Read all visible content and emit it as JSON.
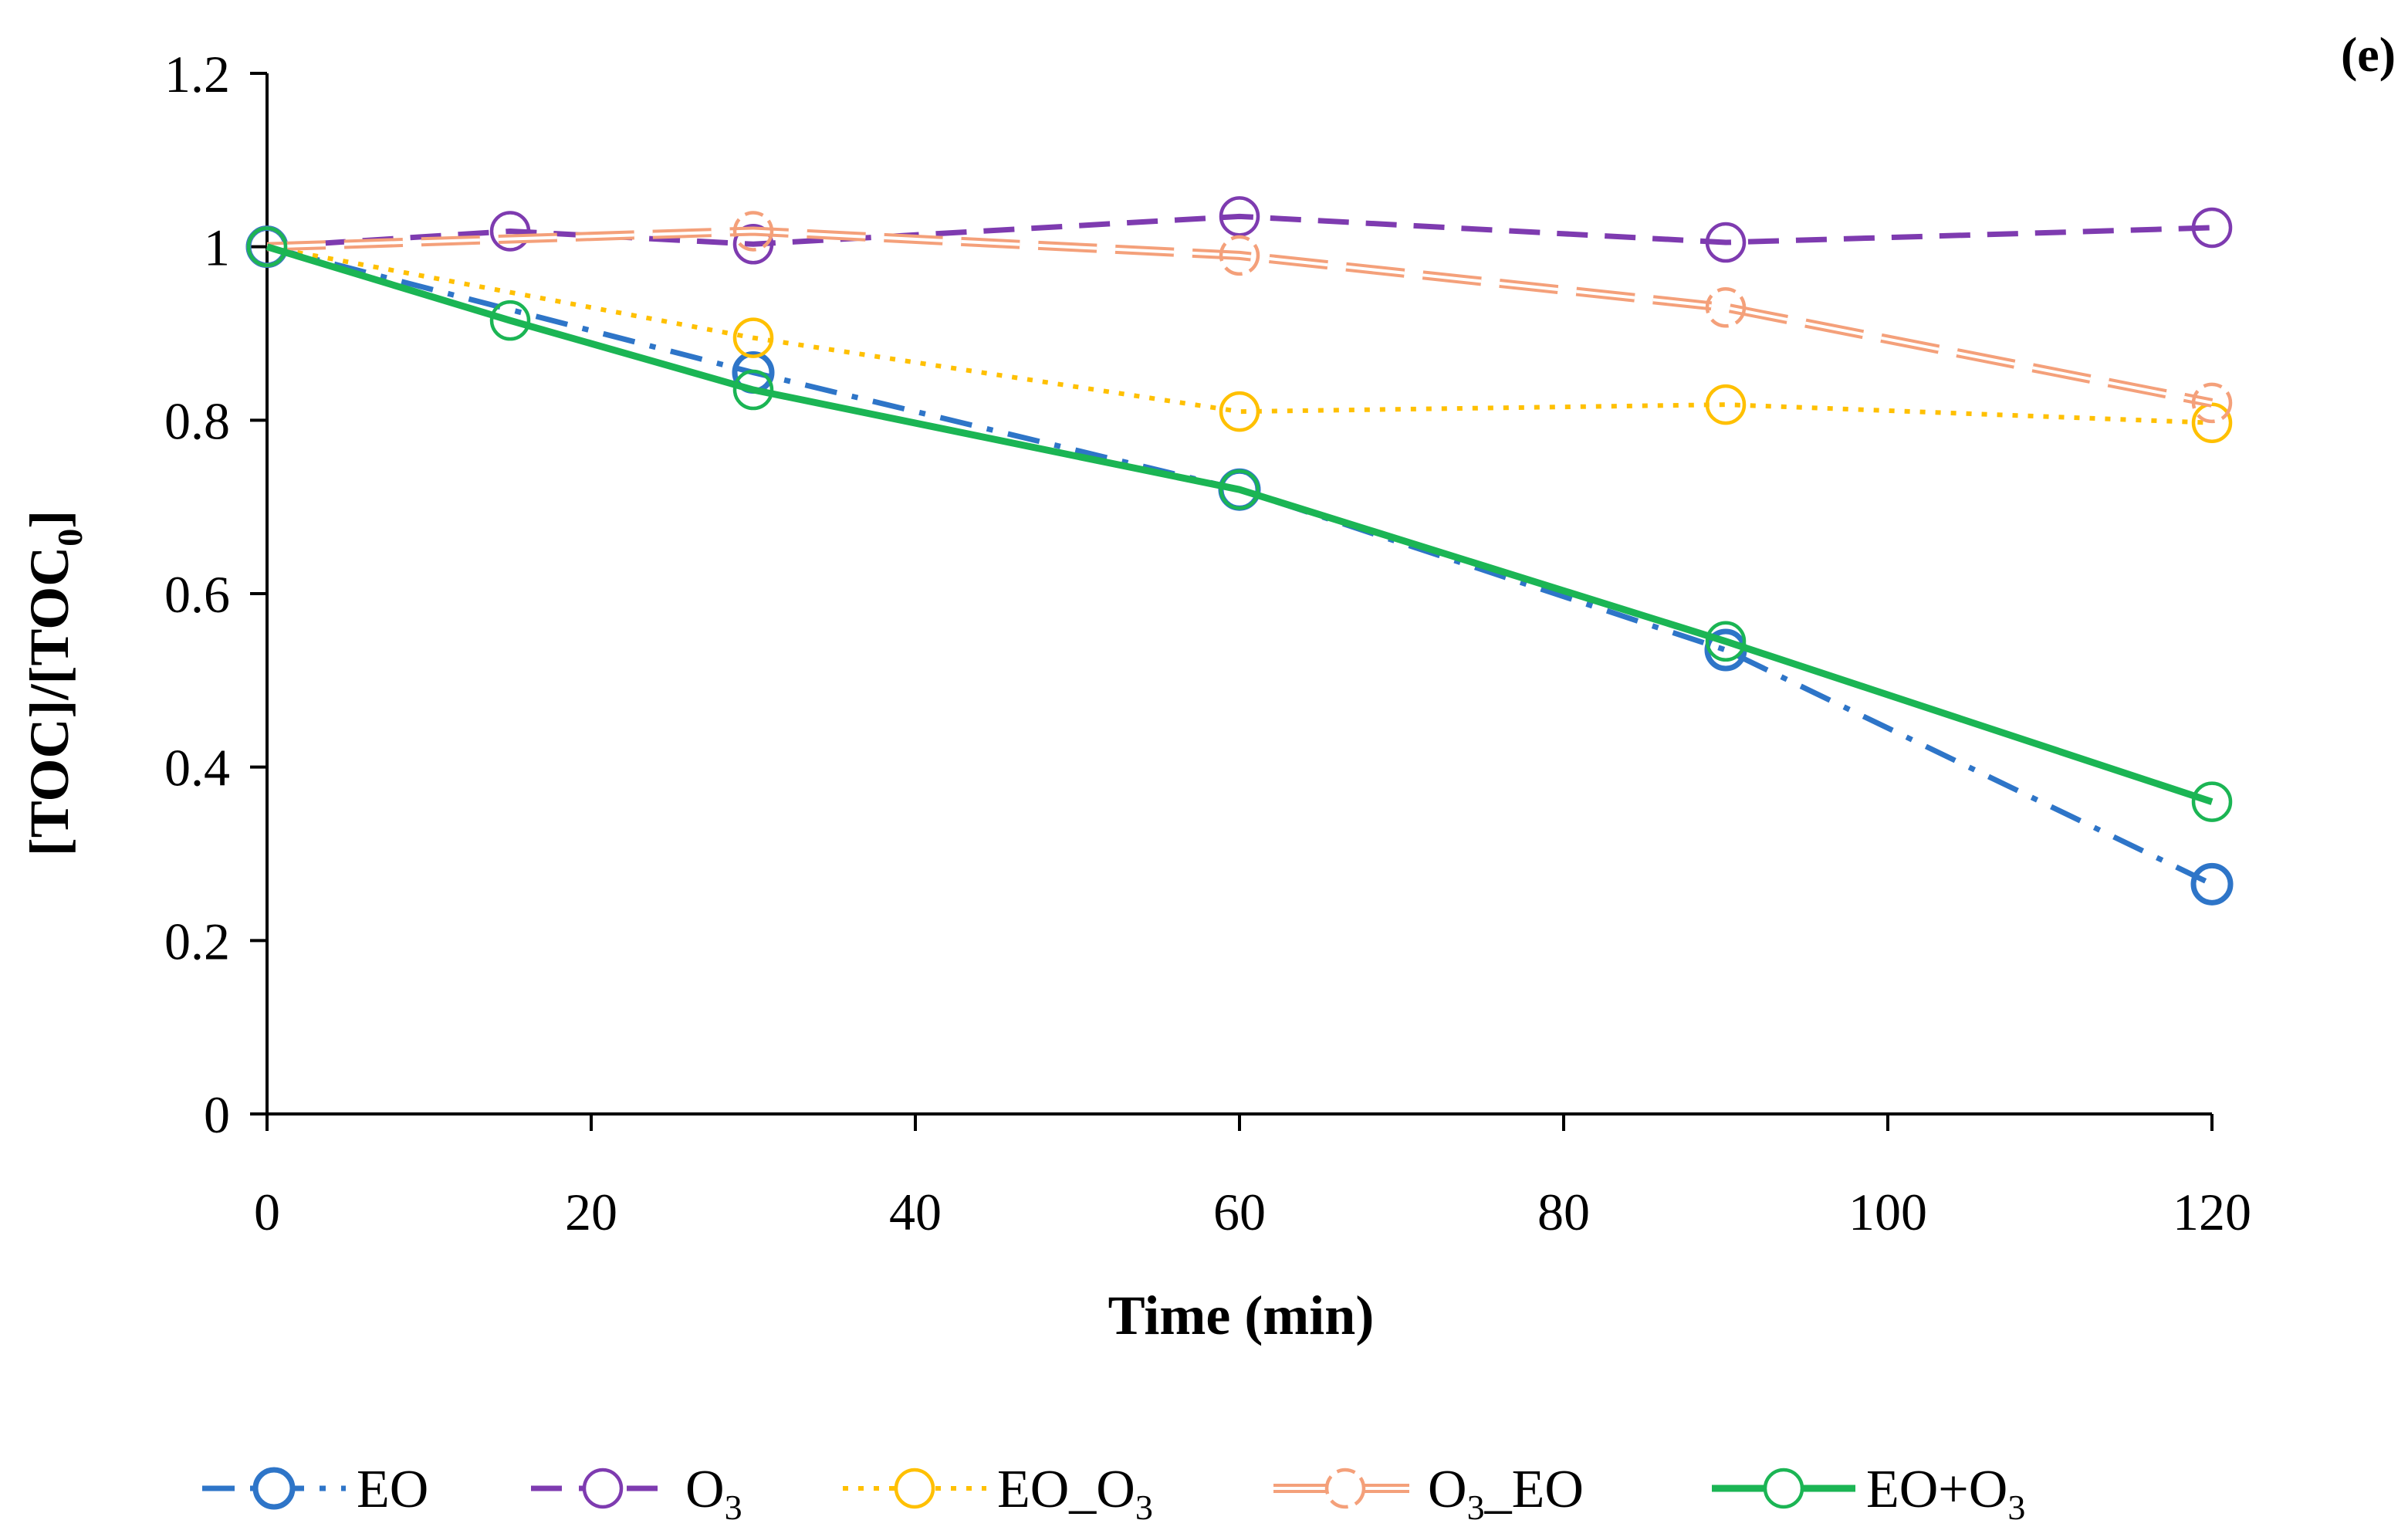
{
  "panel_label": "(e)",
  "chart_data": {
    "type": "line",
    "title": "",
    "xlabel": "Time (min)",
    "ylabel": "[TOC]/[TOC0]",
    "ylabel_parts": {
      "main": "[TOC]/[TOC",
      "sub": "0",
      "end": "]"
    },
    "xlim": [
      0,
      120
    ],
    "ylim": [
      0,
      1.2
    ],
    "xticks": [
      0,
      20,
      40,
      60,
      80,
      100,
      120
    ],
    "xtick_labels": [
      "0",
      "20",
      "40",
      "60",
      "80",
      "100",
      "120"
    ],
    "yticks": [
      0,
      0.2,
      0.4,
      0.6,
      0.8,
      1.0,
      1.2
    ],
    "ytick_labels": [
      "0",
      "0.2",
      "0.4",
      "0.6",
      "0.8",
      "1",
      "1.2"
    ],
    "grid": false,
    "legend_position": "bottom",
    "series": [
      {
        "name": "EO",
        "label_parts": {
          "main": "EO",
          "sub": "",
          "end": ""
        },
        "color": "#2E75C8",
        "line_style": "dash-dot",
        "x": [
          0,
          30,
          60,
          90,
          120
        ],
        "y": [
          1.0,
          0.855,
          0.72,
          0.535,
          0.265
        ]
      },
      {
        "name": "O3",
        "label_parts": {
          "main": "O",
          "sub": "3",
          "end": ""
        },
        "color": "#7E3BB0",
        "line_style": "dashed",
        "x": [
          0,
          15,
          30,
          60,
          90,
          120
        ],
        "y": [
          1.0,
          1.018,
          1.003,
          1.035,
          1.005,
          1.022
        ]
      },
      {
        "name": "EO_O3",
        "label_parts": {
          "main": "EO_O",
          "sub": "3",
          "end": ""
        },
        "color": "#FFC000",
        "line_style": "dotted",
        "x": [
          0,
          30,
          60,
          90,
          120
        ],
        "y": [
          1.0,
          0.895,
          0.81,
          0.818,
          0.797
        ]
      },
      {
        "name": "O3_EO",
        "label_parts": {
          "main": "O",
          "sub": "3",
          "end": "_EO"
        },
        "color": "#F4A07A",
        "line_style": "long-dash-double",
        "x": [
          0,
          30,
          60,
          90,
          120
        ],
        "y": [
          1.0,
          1.018,
          0.99,
          0.93,
          0.82
        ]
      },
      {
        "name": "EO+O3",
        "label_parts": {
          "main": "EO+O",
          "sub": "3",
          "end": ""
        },
        "color": "#1BB554",
        "line_style": "solid",
        "x": [
          0,
          15,
          30,
          60,
          90,
          120
        ],
        "y": [
          1.0,
          0.915,
          0.835,
          0.72,
          0.545,
          0.36
        ]
      }
    ]
  }
}
